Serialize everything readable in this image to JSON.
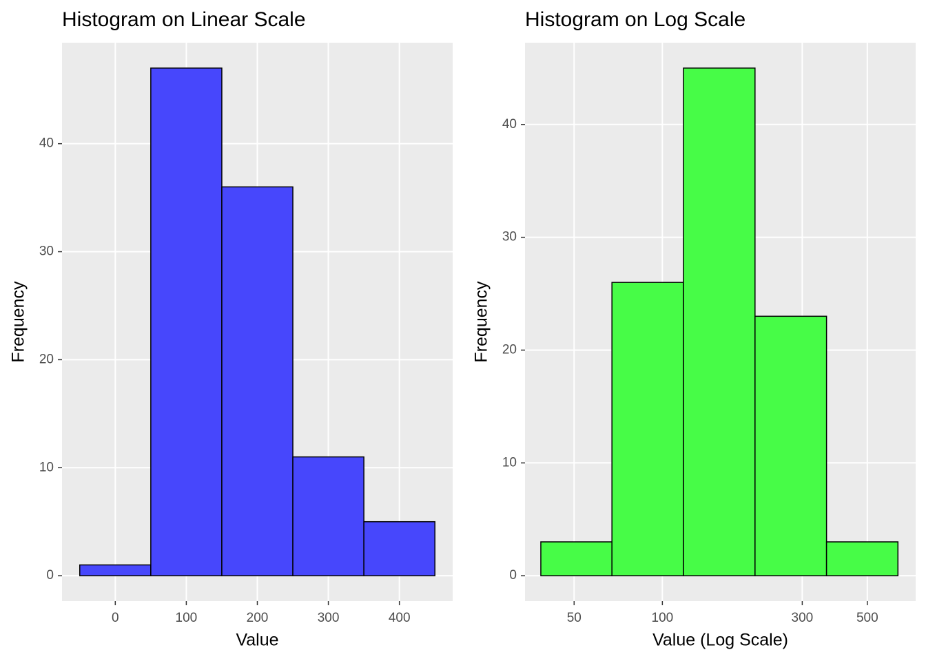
{
  "chart_data": [
    {
      "type": "histogram",
      "title": "Histogram on Linear Scale",
      "x_label": "Value",
      "y_label": "Frequency",
      "bins": [
        -50,
        50,
        150,
        250,
        350,
        450
      ],
      "values": [
        1,
        47,
        36,
        11,
        5
      ],
      "color": "#4747fc",
      "xlim": [
        -75,
        475
      ],
      "xticks": [
        0,
        100,
        200,
        300,
        400
      ],
      "ylim": [
        -2.35,
        49.35
      ],
      "yticks": [
        0,
        10,
        20,
        30,
        40
      ],
      "xscale": "linear",
      "grid": true
    },
    {
      "type": "histogram",
      "title": "Histogram on Log Scale",
      "x_label": "Value (Log Scale)",
      "y_label": "Frequency",
      "bins": [
        38.5,
        67.3,
        118,
        207,
        363,
        636
      ],
      "values": [
        3,
        26,
        45,
        23,
        3
      ],
      "color": "#47fc47",
      "xlim": [
        34,
        731
      ],
      "xticks": [
        50,
        100,
        300,
        500
      ],
      "ylim": [
        -2.25,
        47.25
      ],
      "yticks": [
        0,
        10,
        20,
        30,
        40
      ],
      "xscale": "log",
      "grid": true
    }
  ]
}
